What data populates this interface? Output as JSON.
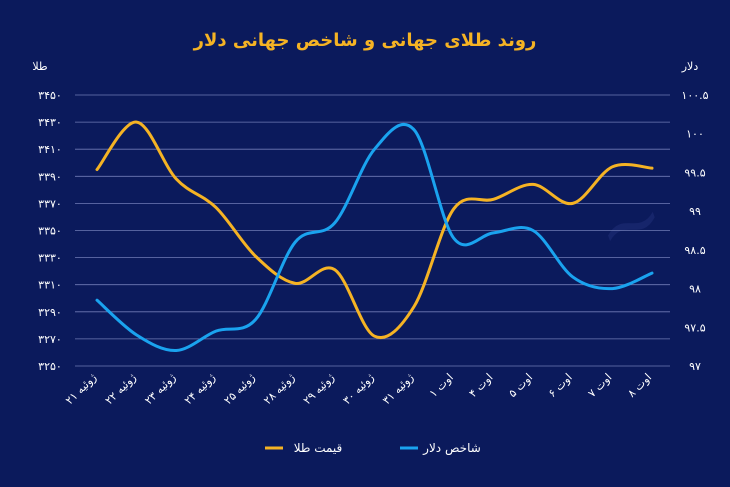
{
  "chart_data": {
    "type": "line",
    "title": "روند طلای جهانی و شاخص جهانی دلار",
    "y_left_label": "طلا",
    "y_right_label": "دلار",
    "categories": [
      "۲۱ ژوئیه",
      "۲۲ ژوئیه",
      "۲۳ ژوئیه",
      "۲۴ ژوئیه",
      "۲۵ ژوئیه",
      "۲۸ ژوئیه",
      "۲۹ ژوئیه",
      "۳۰ ژوئیه",
      "۳۱ ژوئیه",
      "۱ اوت",
      "۴ اوت",
      "۵ اوت",
      "۶ اوت",
      "۷ اوت",
      "۸ اوت"
    ],
    "y_left": {
      "min": 3250,
      "max": 3450,
      "ticks": [
        3250,
        3270,
        3290,
        3310,
        3330,
        3350,
        3370,
        3390,
        3410,
        3430,
        3450
      ],
      "tick_labels": [
        "۳۲۵۰",
        "۳۲۷۰",
        "۳۲۹۰",
        "۳۳۱۰",
        "۳۳۳۰",
        "۳۳۵۰",
        "۳۳۷۰",
        "۳۳۹۰",
        "۳۴۱۰",
        "۳۴۳۰",
        "۳۴۵۰"
      ]
    },
    "y_right": {
      "min": 97,
      "max": 100.5,
      "ticks": [
        97,
        97.5,
        98,
        98.5,
        99,
        99.5,
        100,
        100.5
      ],
      "tick_labels": [
        "۹۷",
        "۹۷.۵",
        "۹۸",
        "۹۸.۵",
        "۹۹",
        "۹۹.۵",
        "۱۰۰",
        "۱۰۰.۵"
      ]
    },
    "series": [
      {
        "name": "قیمت طلا",
        "axis": "left",
        "color": "#f5b324",
        "values": [
          3395,
          3430,
          3388,
          3367,
          3331,
          3311,
          3321,
          3272,
          3294,
          3366,
          3373,
          3384,
          3370,
          3397,
          3396
        ]
      },
      {
        "name": "شاخص دلار",
        "axis": "right",
        "color": "#1aa3ef",
        "values": [
          97.85,
          97.4,
          97.2,
          97.45,
          97.6,
          98.6,
          98.85,
          99.8,
          100.05,
          98.65,
          98.72,
          98.75,
          98.15,
          98.0,
          98.2
        ]
      }
    ],
    "grid": true,
    "legend_position": "bottom"
  },
  "colors": {
    "background": "#0b1a5c",
    "title": "#f5b324",
    "grid": "#6f7bb5",
    "gold": "#f5b324",
    "dollar": "#1aa3ef"
  }
}
